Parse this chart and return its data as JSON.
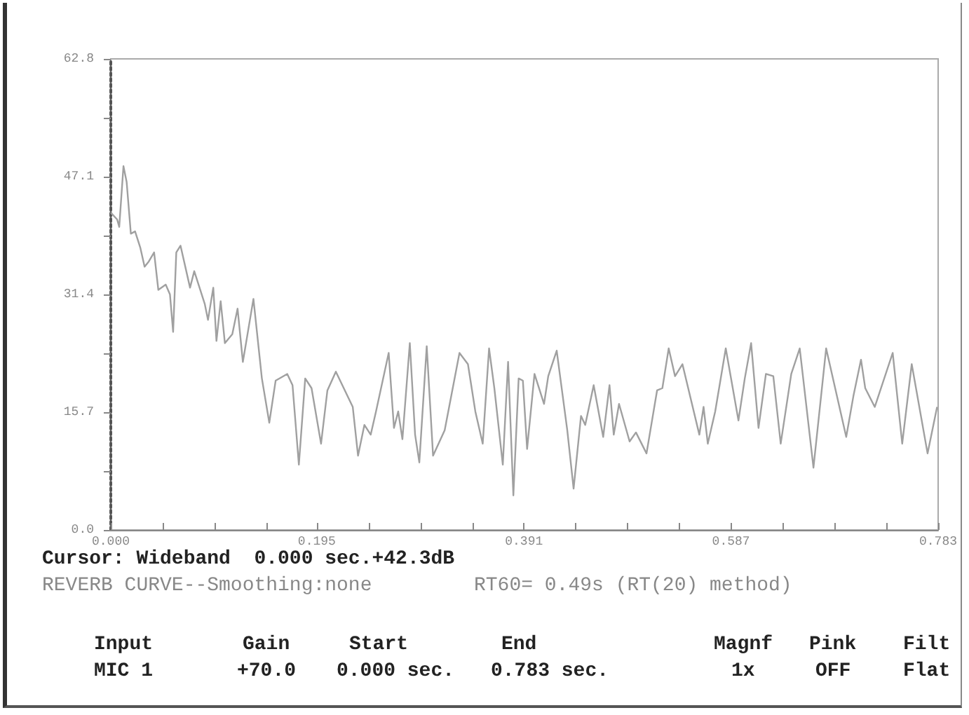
{
  "chart_data": {
    "type": "line",
    "xlim": [
      0,
      0.783
    ],
    "ylim": [
      0,
      62.8
    ],
    "xticks": [
      {
        "value": 0,
        "label": "0.000"
      },
      {
        "value": 0.049,
        "label": null
      },
      {
        "value": 0.098,
        "label": null
      },
      {
        "value": 0.147,
        "label": null
      },
      {
        "value": 0.195,
        "label": "0.195"
      },
      {
        "value": 0.245,
        "label": null
      },
      {
        "value": 0.294,
        "label": null
      },
      {
        "value": 0.343,
        "label": null
      },
      {
        "value": 0.391,
        "label": "0.391"
      },
      {
        "value": 0.44,
        "label": null
      },
      {
        "value": 0.489,
        "label": null
      },
      {
        "value": 0.538,
        "label": null
      },
      {
        "value": 0.587,
        "label": "0.587"
      },
      {
        "value": 0.636,
        "label": null
      },
      {
        "value": 0.685,
        "label": null
      },
      {
        "value": 0.734,
        "label": null
      },
      {
        "value": 0.783,
        "label": "0.783"
      }
    ],
    "yticks": [
      {
        "value": 0,
        "label": "0.0"
      },
      {
        "value": 7.85,
        "label": null
      },
      15.7,
      {
        "value": 23.55,
        "label": null
      },
      31.4,
      {
        "value": 39.25,
        "label": null
      },
      47.1,
      {
        "value": 54.95,
        "label": null
      },
      62.8
    ],
    "grid": false,
    "marker": "none",
    "line_style": "solid",
    "series": [
      {
        "color": "#a0a0a0",
        "x": [
          0,
          0.006,
          0.008,
          0.012,
          0.015,
          0.019,
          0.023,
          0.028,
          0.032,
          0.036,
          0.041,
          0.045,
          0.052,
          0.056,
          0.059,
          0.062,
          0.066,
          0.075,
          0.079,
          0.089,
          0.092,
          0.097,
          0.1,
          0.104,
          0.108,
          0.115,
          0.12,
          0.125,
          0.135,
          0.143,
          0.15,
          0.156,
          0.167,
          0.172,
          0.178,
          0.184,
          0.19,
          0.199,
          0.205,
          0.213,
          0.229,
          0.234,
          0.24,
          0.246,
          0.251,
          0.263,
          0.268,
          0.272,
          0.276,
          0.283,
          0.288,
          0.292,
          0.299,
          0.305,
          0.316,
          0.33,
          0.338,
          0.345,
          0.352,
          0.358,
          0.363,
          0.371,
          0.376,
          0.381,
          0.386,
          0.39,
          0.394,
          0.401,
          0.41,
          0.414,
          0.422,
          0.432,
          0.438,
          0.445,
          0.449,
          0.457,
          0.466,
          0.472,
          0.476,
          0.481,
          0.491,
          0.497,
          0.507,
          0.517,
          0.522,
          0.528,
          0.534,
          0.541,
          0.557,
          0.561,
          0.565,
          0.572,
          0.582,
          0.594,
          0.6,
          0.606,
          0.613,
          0.62,
          0.627,
          0.634,
          0.644,
          0.652,
          0.665,
          0.677,
          0.696,
          0.703,
          0.71,
          0.714,
          0.723,
          0.74,
          0.749,
          0.758,
          0.773,
          0.782
        ],
        "values": [
          42.3,
          41.4,
          40.4,
          48.5,
          46.4,
          39.5,
          39.8,
          37.6,
          35.1,
          35.8,
          37.0,
          32.0,
          32.7,
          31.4,
          26.4,
          37.0,
          37.9,
          32.3,
          34.5,
          30.1,
          28.0,
          32.3,
          25.2,
          30.5,
          24.9,
          26.1,
          29.5,
          22.4,
          30.8,
          20.2,
          14.3,
          19.9,
          20.8,
          19.3,
          8.7,
          20.2,
          18.9,
          11.5,
          18.6,
          21.1,
          16.4,
          9.9,
          14.0,
          12.7,
          15.8,
          23.6,
          13.6,
          15.8,
          12.1,
          24.9,
          12.7,
          9.0,
          24.5,
          9.9,
          13.3,
          23.6,
          22.1,
          15.8,
          11.5,
          24.2,
          18.9,
          8.7,
          22.4,
          4.6,
          20.2,
          19.9,
          10.8,
          20.8,
          16.8,
          20.5,
          23.9,
          13.3,
          5.5,
          15.2,
          14.0,
          19.3,
          12.4,
          19.3,
          12.7,
          16.8,
          11.8,
          13.0,
          10.2,
          18.6,
          18.9,
          24.2,
          20.5,
          22.1,
          12.7,
          16.4,
          11.5,
          15.8,
          24.2,
          14.6,
          20.2,
          24.9,
          13.6,
          20.8,
          20.5,
          11.5,
          20.8,
          24.2,
          8.3,
          24.2,
          12.4,
          18.0,
          22.7,
          18.9,
          16.4,
          23.6,
          11.5,
          22.1,
          10.2,
          16.4
        ]
      }
    ],
    "annotations": [
      "Cursor: Wideband  0.000 sec.+42.3dB",
      "REVERB CURVE--Smoothing:none",
      "RT60= 0.49s (RT(20) method)",
      "Input",
      "MIC 1",
      "Gain",
      "+70.0",
      "Start",
      "0.000 sec.",
      "End",
      "0.783 sec.",
      "Magnf",
      "1x",
      "Pink",
      "OFF",
      "Filt",
      "Flat"
    ]
  }
}
